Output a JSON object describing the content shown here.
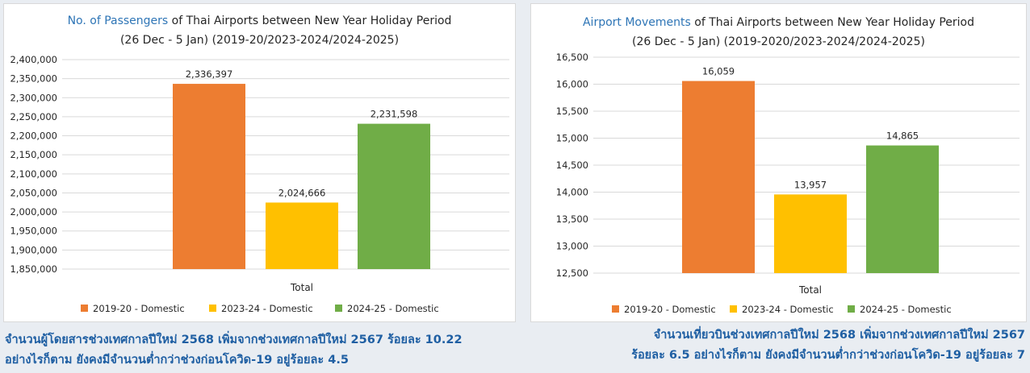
{
  "colors": {
    "series": [
      "#ed7d31",
      "#ffc000",
      "#70ad47"
    ],
    "accent": "#2e75b6",
    "caption": "#1f5fa3"
  },
  "left_chart": {
    "title_accent": "No. of Passengers",
    "title_rest": " of Thai Airports between New Year Holiday Period",
    "title_line2": "(26 Dec - 5 Jan) (2019-20/2023-2024/2024-2025)"
  },
  "right_chart": {
    "title_accent": "Airport Movements",
    "title_rest": " of Thai Airports between New Year Holiday Period",
    "title_line2": "(26 Dec - 5 Jan) (2019-2020/2023-2024/2024-2025)"
  },
  "chart_data": [
    {
      "type": "bar",
      "title": "No. of Passengers of Thai Airports between New Year Holiday Period (26 Dec - 5 Jan) (2019-20/2023-2024/2024-2025)",
      "categories": [
        "Total"
      ],
      "xlabel": "Total",
      "series": [
        {
          "name": "2019-20 - Domestic",
          "values": [
            2336397
          ],
          "label": "2,336,397"
        },
        {
          "name": "2023-24 - Domestic",
          "values": [
            2024666
          ],
          "label": "2,024,666"
        },
        {
          "name": "2024-25 - Domestic",
          "values": [
            2231598
          ],
          "label": "2,231,598"
        }
      ],
      "ylim": [
        1850000,
        2400000
      ],
      "yticks": [
        "1,850,000",
        "1,900,000",
        "1,950,000",
        "2,000,000",
        "2,050,000",
        "2,100,000",
        "2,150,000",
        "2,200,000",
        "2,250,000",
        "2,300,000",
        "2,350,000",
        "2,400,000"
      ],
      "grid": true,
      "legend": "bottom"
    },
    {
      "type": "bar",
      "title": "Airport Movements of Thai Airports between New Year Holiday Period (26 Dec - 5 Jan) (2019-2020/2023-2024/2024-2025)",
      "categories": [
        "Total"
      ],
      "xlabel": "Total",
      "series": [
        {
          "name": "2019-20 - Domestic",
          "values": [
            16059
          ],
          "label": "16,059"
        },
        {
          "name": "2023-24 - Domestic",
          "values": [
            13957
          ],
          "label": "13,957"
        },
        {
          "name": "2024-25 - Domestic",
          "values": [
            14865
          ],
          "label": "14,865"
        }
      ],
      "ylim": [
        12500,
        16500
      ],
      "yticks": [
        "12,500",
        "13,000",
        "13,500",
        "14,000",
        "14,500",
        "15,000",
        "15,500",
        "16,000",
        "16,500"
      ],
      "grid": true,
      "legend": "bottom"
    }
  ],
  "captions": {
    "left_line1": "จำนวนผู้โดยสารช่วงเทศกาลปีใหม่ 2568 เพิ่มจากช่วงเทศกาลปีใหม่ 2567 ร้อยละ 10.22",
    "left_line2": "อย่างไรก็ตาม ยังคงมีจำนวนต่ำกว่าช่วงก่อนโควิด-19 อยู่ร้อยละ 4.5",
    "right_line1": "จำนวนเที่ยวบินช่วงเทศกาลปีใหม่ 2568 เพิ่มจากช่วงเทศกาลปีใหม่ 2567",
    "right_line2": "ร้อยละ 6.5 อย่างไรก็ตาม ยังคงมีจำนวนต่ำกว่าช่วงก่อนโควิด-19 อยู่ร้อยละ 7"
  }
}
